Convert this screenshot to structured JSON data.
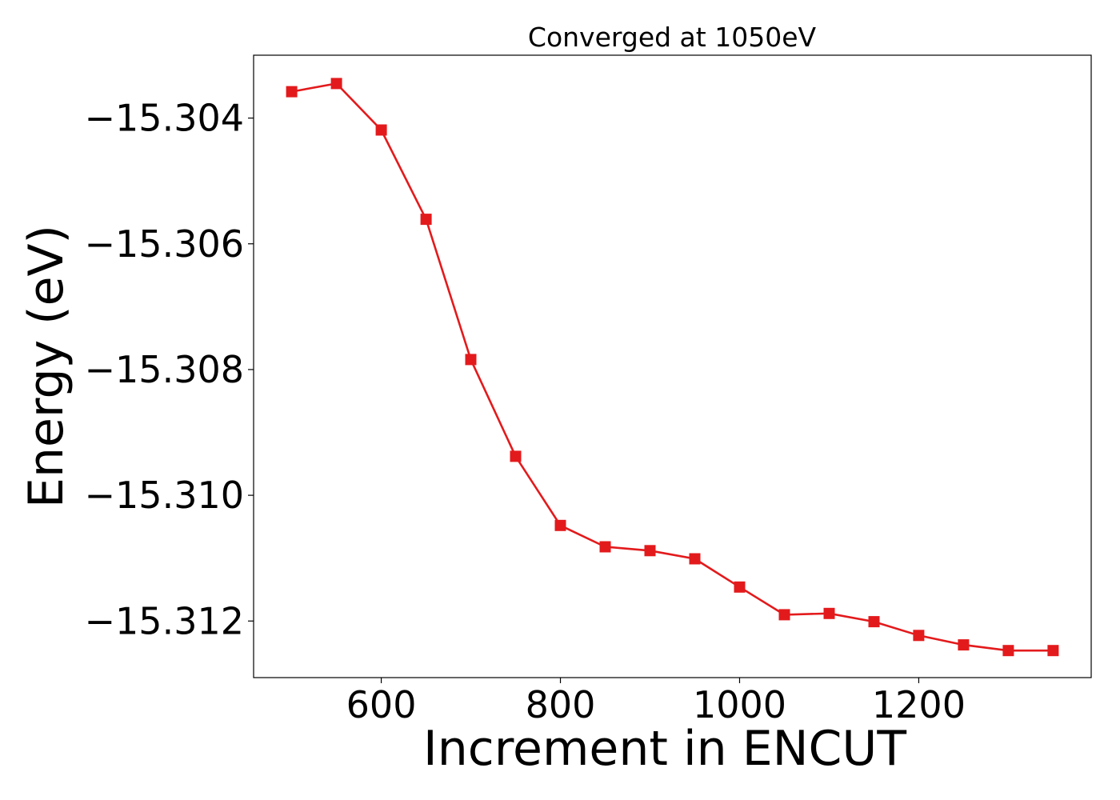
{
  "chart_data": {
    "type": "line",
    "title": "Converged at 1050eV",
    "xlabel": "Increment in ENCUT",
    "ylabel": "Energy (eV)",
    "xlim": [
      457.5,
      1392.5
    ],
    "ylim": [
      -15.3129,
      -15.303
    ],
    "xticks": [
      600,
      800,
      1000,
      1200
    ],
    "xtick_labels": [
      "600",
      "800",
      "1000",
      "1200"
    ],
    "yticks": [
      -15.304,
      -15.306,
      -15.308,
      -15.31,
      -15.312
    ],
    "ytick_labels": [
      "−15.304",
      "−15.306",
      "−15.308",
      "−15.310",
      "−15.312"
    ],
    "grid": false,
    "legend": "none",
    "marker": "square",
    "color": "#e31a1c",
    "x": [
      500,
      550,
      600,
      650,
      700,
      750,
      800,
      850,
      900,
      950,
      1000,
      1050,
      1100,
      1150,
      1200,
      1250,
      1300,
      1350
    ],
    "series": [
      {
        "values": [
          -15.30358,
          -15.30345,
          -15.30419,
          -15.30561,
          -15.30784,
          -15.30938,
          -15.31048,
          -15.31082,
          -15.31088,
          -15.31101,
          -15.31146,
          -15.3119,
          -15.31188,
          -15.31201,
          -15.31223,
          -15.31238,
          -15.31247,
          -15.31247
        ]
      }
    ]
  }
}
